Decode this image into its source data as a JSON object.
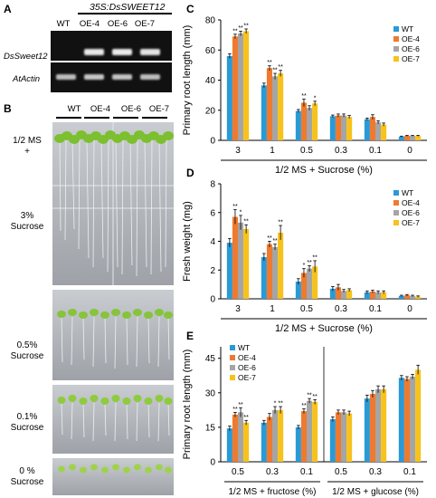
{
  "panelA": {
    "letter": "A",
    "construct": "35S:DsSWEET12",
    "lanes": [
      "WT",
      "OE-4",
      "OE-6",
      "OE-7"
    ],
    "rows": [
      "DsSweet12",
      "AtActin"
    ]
  },
  "panelB": {
    "letter": "B",
    "lanes": [
      "WT",
      "OE-4",
      "OE-6",
      "OE-7"
    ],
    "conditions": [
      "1/2 MS\n+",
      "3%\nSucrose",
      "0.5%\nSucrose",
      "0.1%\nSucrose",
      "0 %\nSucrose"
    ]
  },
  "colors": {
    "WT": "#2a9ad6",
    "OE-4": "#ef7a2f",
    "OE-6": "#a5a5a5",
    "OE-7": "#f7c21b"
  },
  "chart_data": [
    {
      "id": "C",
      "type": "bar",
      "ylabel": "Primary root length (mm)",
      "xlabel": "1/2 MS + Sucrose (%)",
      "ylim": [
        0,
        80
      ],
      "yticks": [
        0,
        20,
        40,
        60,
        80
      ],
      "categories": [
        "3",
        "1",
        "0.5",
        "0.3",
        "0.1",
        "0"
      ],
      "series": [
        {
          "name": "WT",
          "values": [
            56,
            36.5,
            19.5,
            16,
            14,
            2.5
          ]
        },
        {
          "name": "OE-4",
          "values": [
            69,
            48,
            25,
            16.5,
            15.5,
            3
          ]
        },
        {
          "name": "OE-6",
          "values": [
            71,
            42.5,
            21.5,
            16.5,
            12,
            3
          ]
        },
        {
          "name": "OE-7",
          "values": [
            72.5,
            44.5,
            24.5,
            15.5,
            10.5,
            3
          ]
        }
      ],
      "errors": [
        [
          1.5,
          1.5,
          1,
          0.8,
          0.8,
          0.3
        ],
        [
          1.5,
          1.5,
          2.5,
          1,
          1.5,
          0.3
        ],
        [
          1.5,
          2,
          1.5,
          1,
          1,
          0.3
        ],
        [
          1.5,
          2,
          1.5,
          1,
          1,
          0.3
        ]
      ],
      "marks": [
        [
          "",
          "",
          "",
          "",
          "",
          ""
        ],
        [
          "**",
          "**",
          "**",
          "",
          "",
          ""
        ],
        [
          "**",
          "**",
          "",
          "",
          "",
          ""
        ],
        [
          "**",
          "**",
          "*",
          "",
          "",
          ""
        ]
      ]
    },
    {
      "id": "D",
      "type": "bar",
      "ylabel": "Fresh weight (mg)",
      "xlabel": "1/2 MS + Sucrose (%)",
      "ylim": [
        0,
        8
      ],
      "yticks": [
        0,
        2,
        4,
        6,
        8
      ],
      "categories": [
        "3",
        "1",
        "0.5",
        "0.3",
        "0.1",
        "0"
      ],
      "series": [
        {
          "name": "WT",
          "values": [
            3.9,
            2.9,
            1.2,
            0.7,
            0.45,
            0.2
          ]
        },
        {
          "name": "OE-4",
          "values": [
            5.7,
            3.8,
            1.8,
            0.8,
            0.5,
            0.25
          ]
        },
        {
          "name": "OE-6",
          "values": [
            5.3,
            3.6,
            2.1,
            0.55,
            0.45,
            0.2
          ]
        },
        {
          "name": "OE-7",
          "values": [
            4.85,
            4.6,
            2.25,
            0.6,
            0.45,
            0.15
          ]
        }
      ],
      "errors": [
        [
          0.3,
          0.25,
          0.2,
          0.15,
          0.1,
          0.05
        ],
        [
          0.5,
          0.2,
          0.3,
          0.2,
          0.1,
          0.05
        ],
        [
          0.5,
          0.2,
          0.2,
          0.1,
          0.1,
          0.05
        ],
        [
          0.3,
          0.5,
          0.4,
          0.1,
          0.1,
          0.05
        ]
      ],
      "marks": [
        [
          "",
          "",
          "",
          "",
          "",
          ""
        ],
        [
          "**",
          "**",
          "*",
          "",
          "",
          ""
        ],
        [
          "*",
          "**",
          "**",
          "",
          "",
          ""
        ],
        [
          "**",
          "**",
          "**",
          "",
          "",
          ""
        ]
      ]
    },
    {
      "id": "E",
      "type": "bar",
      "ylabel": "Primary root length (mm)",
      "xlabel_groups": [
        "1/2 MS + fructose (%)",
        "1/2 MS + glucose (%)"
      ],
      "ylim": [
        0,
        50
      ],
      "yticks": [
        0,
        15,
        30,
        45
      ],
      "categories": [
        "0.5",
        "0.3",
        "0.1",
        "0.5",
        "0.3",
        "0.1"
      ],
      "series": [
        {
          "name": "WT",
          "values": [
            14.5,
            17,
            15,
            18.5,
            27.5,
            36.5
          ]
        },
        {
          "name": "OE-4",
          "values": [
            20.5,
            19.5,
            22,
            21.5,
            29.5,
            36
          ]
        },
        {
          "name": "OE-6",
          "values": [
            21.5,
            22.5,
            26.5,
            21.5,
            31.5,
            37
          ]
        },
        {
          "name": "OE-7",
          "values": [
            17,
            22.5,
            26,
            21,
            31.5,
            40
          ]
        }
      ],
      "errors": [
        [
          1,
          1,
          0.8,
          1,
          1.5,
          1
        ],
        [
          1,
          1.5,
          1,
          1,
          1.5,
          1
        ],
        [
          2,
          1.5,
          1,
          1,
          1.5,
          1
        ],
        [
          1,
          1.5,
          1,
          1,
          1.5,
          2
        ]
      ],
      "marks": [
        [
          "",
          "",
          "",
          "",
          "",
          ""
        ],
        [
          "**",
          "",
          "**",
          "",
          "",
          ""
        ],
        [
          "**",
          "*",
          "**",
          "",
          "",
          ""
        ],
        [
          "**",
          "**",
          "**",
          "",
          "",
          ""
        ]
      ]
    }
  ]
}
